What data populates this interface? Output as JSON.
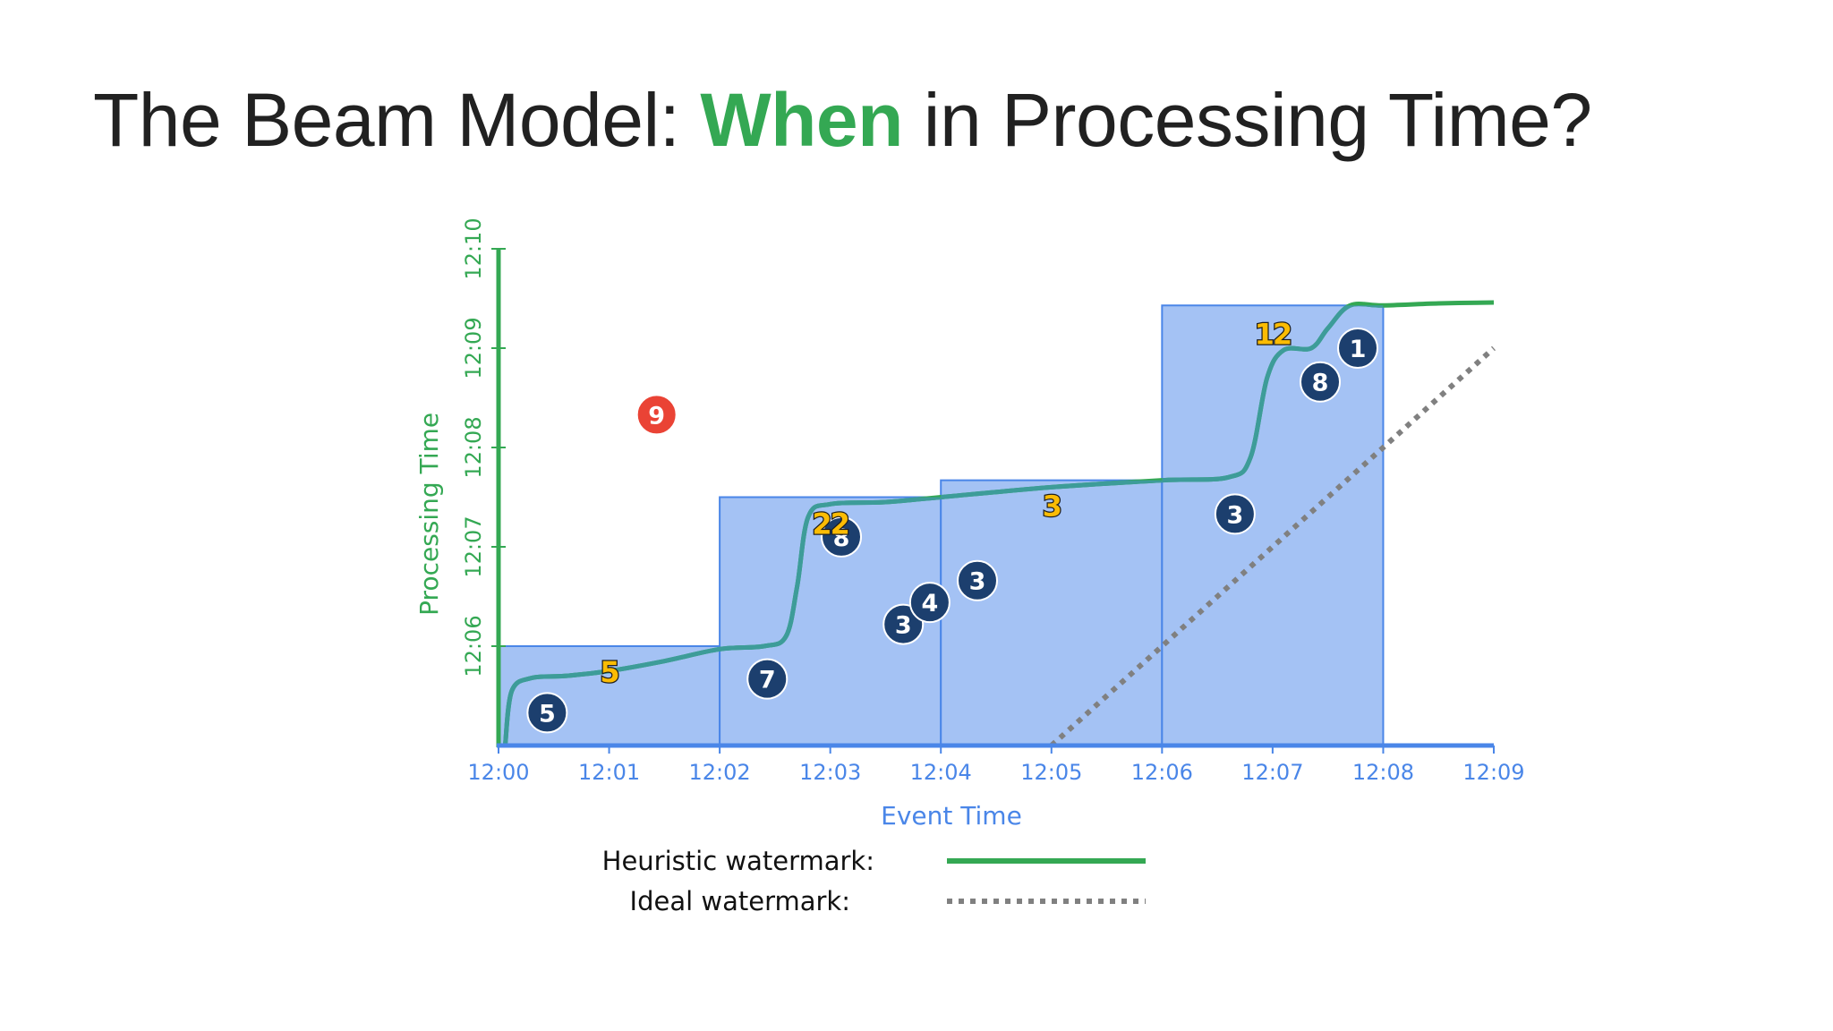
{
  "title": {
    "prefix": "The Beam Model: ",
    "highlight": "When",
    "suffix": " in Processing Time?"
  },
  "colors": {
    "title_text": "#212121",
    "title_highlight": "#34a853",
    "processing_axis": "#34a853",
    "event_axis": "#4a86e8",
    "window_fill": "#a4c2f4",
    "window_stroke": "#4a86e8",
    "heuristic_watermark": "#34a853",
    "heuristic_in_window": "#3d9c99",
    "ideal_watermark": "#808080",
    "element_ontime": "#1c3f6e",
    "element_late": "#ea4335",
    "pane_result_fill": "#fbbc04",
    "pane_result_stroke": "#1f1f1f"
  },
  "chart_data": {
    "type": "scatter",
    "xlabel": "Event Time",
    "ylabel": "Processing Time",
    "x_ticks": [
      "12:00",
      "12:01",
      "12:02",
      "12:03",
      "12:04",
      "12:05",
      "12:06",
      "12:07",
      "12:08",
      "12:09"
    ],
    "y_ticks": [
      "12:06",
      "12:07",
      "12:08",
      "12:09",
      "12:10"
    ],
    "xlim_minutes": [
      0,
      9
    ],
    "ylim_minutes": [
      5,
      10
    ],
    "windows": [
      {
        "start": 0,
        "end": 2,
        "fire_at": 6.0
      },
      {
        "start": 2,
        "end": 4,
        "fire_at": 7.5
      },
      {
        "start": 4,
        "end": 6,
        "fire_at": 7.67
      },
      {
        "start": 6,
        "end": 8,
        "fire_at": 9.43
      }
    ],
    "elements": [
      {
        "value": "5",
        "event": 0.44,
        "proc": 5.33,
        "late": false
      },
      {
        "value": "7",
        "event": 2.43,
        "proc": 5.67,
        "late": false
      },
      {
        "value": "3",
        "event": 3.66,
        "proc": 6.22,
        "late": false
      },
      {
        "value": "4",
        "event": 3.9,
        "proc": 6.44,
        "late": false
      },
      {
        "value": "8",
        "event": 3.1,
        "proc": 7.1,
        "late": false
      },
      {
        "value": "3",
        "event": 4.33,
        "proc": 6.66,
        "late": false
      },
      {
        "value": "3",
        "event": 6.66,
        "proc": 7.33,
        "late": false
      },
      {
        "value": "8",
        "event": 7.43,
        "proc": 8.66,
        "late": false
      },
      {
        "value": "1",
        "event": 7.77,
        "proc": 9.0,
        "late": false
      },
      {
        "value": "9",
        "event": 1.43,
        "proc": 8.33,
        "late": true
      }
    ],
    "pane_results": [
      {
        "value": "5",
        "event": 1.0,
        "proc": 5.75
      },
      {
        "value": "22",
        "event": 3.0,
        "proc": 7.24
      },
      {
        "value": "3",
        "event": 5.0,
        "proc": 7.42
      },
      {
        "value": "12",
        "event": 7.0,
        "proc": 9.15
      }
    ],
    "heuristic_watermark": [
      [
        0.06,
        5.0
      ],
      [
        0.12,
        5.55
      ],
      [
        0.3,
        5.68
      ],
      [
        0.6,
        5.7
      ],
      [
        1.0,
        5.75
      ],
      [
        1.5,
        5.85
      ],
      [
        2.0,
        5.97
      ],
      [
        2.4,
        6.0
      ],
      [
        2.6,
        6.1
      ],
      [
        2.7,
        6.6
      ],
      [
        2.8,
        7.3
      ],
      [
        3.0,
        7.43
      ],
      [
        3.5,
        7.45
      ],
      [
        4.0,
        7.5
      ],
      [
        5.0,
        7.6
      ],
      [
        6.0,
        7.67
      ],
      [
        6.6,
        7.7
      ],
      [
        6.8,
        7.9
      ],
      [
        6.95,
        8.7
      ],
      [
        7.1,
        8.98
      ],
      [
        7.35,
        9.0
      ],
      [
        7.5,
        9.2
      ],
      [
        7.7,
        9.43
      ],
      [
        8.0,
        9.43
      ],
      [
        8.5,
        9.45
      ],
      [
        9.0,
        9.46
      ]
    ],
    "ideal_watermark": [
      [
        5.0,
        5.0
      ],
      [
        9.0,
        9.0
      ]
    ],
    "legend": [
      {
        "label": "Heuristic watermark:",
        "style": "solid"
      },
      {
        "label": "Ideal watermark:",
        "style": "dotted"
      }
    ]
  }
}
